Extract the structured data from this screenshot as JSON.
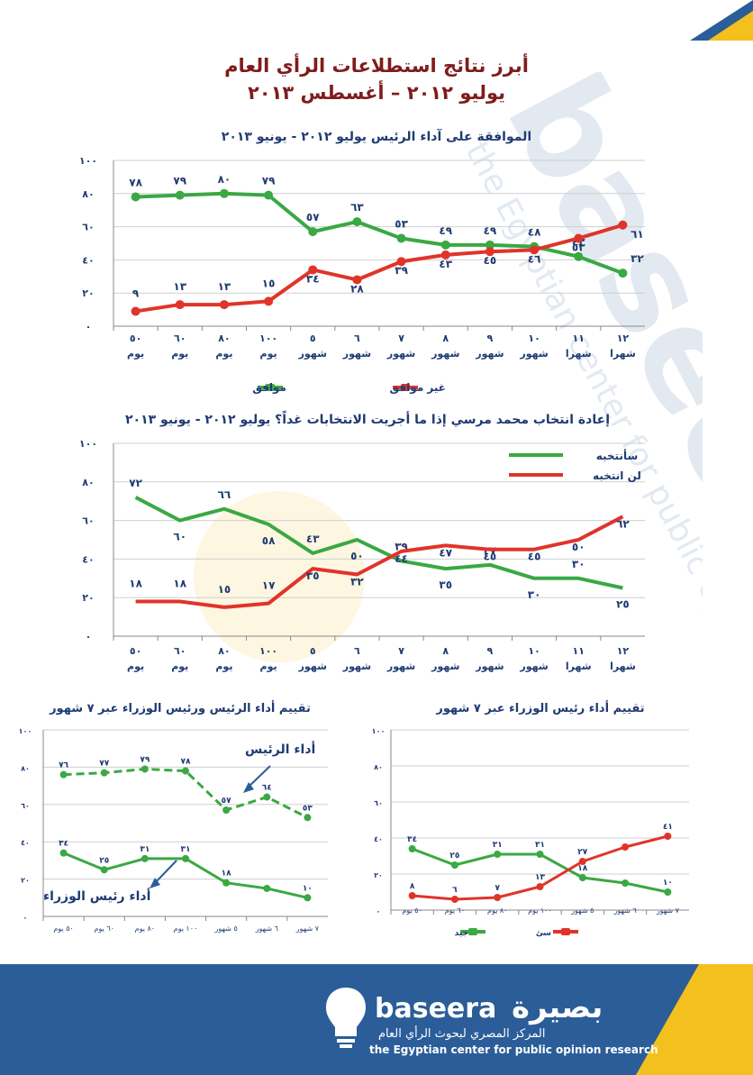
{
  "header": {
    "title_line1": "أبرز نتائج استطلاعات الرأي العام",
    "title_line2": "يوليو ٢٠١٢ – أغسطس ٢٠١٣"
  },
  "colors": {
    "green": "#3aa843",
    "red": "#e0342a",
    "blue": "#2b5d99",
    "yellow": "#f4c01e",
    "title": "#7f1d1d",
    "axis_text": "#1f3b73"
  },
  "watermark": {
    "text": "baseera",
    "subtitle": "the Egyptian center for public opinion research"
  },
  "annotations": {
    "president": "أداء الرئيس",
    "pm": "أداء رئيس الوزراء"
  },
  "footer": {
    "brand_latin": "baseera",
    "brand_arabic": "بصيرة",
    "tagline_ar": "المركز المصري لبحوث الرأي العام",
    "tagline_en": "the Egyptian center for public opinion research",
    "logo_icon": "lightbulb-head-icon"
  },
  "chart_data": [
    {
      "type": "line",
      "title": "الموافقة على آداء الرئيس يوليو ٢٠١٢ - يونيو ٢٠١٣",
      "categories": [
        [
          "٥٠",
          "يوم"
        ],
        [
          "٦٠",
          "يوم"
        ],
        [
          "٨٠",
          "يوم"
        ],
        [
          "١٠٠",
          "يوم"
        ],
        [
          "٥",
          "شهور"
        ],
        [
          "٦",
          "شهور"
        ],
        [
          "٧",
          "شهور"
        ],
        [
          "٨",
          "شهور"
        ],
        [
          "٩",
          "شهور"
        ],
        [
          "١٠",
          "شهور"
        ],
        [
          "١١",
          "شهرا"
        ],
        [
          "١٢",
          "شهرا"
        ]
      ],
      "ylim": [
        0,
        100
      ],
      "yticks": [
        "٠",
        "٢٠",
        "٤٠",
        "٦٠",
        "٨٠",
        "١٠٠"
      ],
      "legend_position": "bottom",
      "series": [
        {
          "name": "موافق",
          "color": "#3aa843",
          "values": [
            78,
            79,
            80,
            79,
            57,
            63,
            53,
            49,
            49,
            48,
            42,
            32
          ],
          "labels": [
            "٧٨",
            "٧٩",
            "٨٠",
            "٧٩",
            "٥٧",
            "٦٣",
            "٥٣",
            "٤٩",
            "٤٩",
            "٤٨",
            "٤٢",
            "٣٢"
          ]
        },
        {
          "name": "غير موافق",
          "color": "#e0342a",
          "values": [
            9,
            13,
            13,
            15,
            34,
            28,
            39,
            43,
            45,
            46,
            53,
            61
          ],
          "labels": [
            "٩",
            "١٣",
            "١٣",
            "١٥",
            "٣٤",
            "٢٨",
            "٣٩",
            "٤٣",
            "٤٥",
            "٤٦",
            "٥٣",
            "٦١"
          ]
        }
      ]
    },
    {
      "type": "line",
      "title": "إعادة انتخاب محمد مرسي إذا ما أجريت الانتخابات غداً؟ يوليو ٢٠١٢ - يونيو ٢٠١٣",
      "categories": [
        [
          "٥٠",
          "يوم"
        ],
        [
          "٦٠",
          "يوم"
        ],
        [
          "٨٠",
          "يوم"
        ],
        [
          "١٠٠",
          "يوم"
        ],
        [
          "٥",
          "شهور"
        ],
        [
          "٦",
          "شهور"
        ],
        [
          "٧",
          "شهور"
        ],
        [
          "٨",
          "شهور"
        ],
        [
          "٩",
          "شهور"
        ],
        [
          "١٠",
          "شهور"
        ],
        [
          "١١",
          "شهرا"
        ],
        [
          "١٢",
          "شهرا"
        ]
      ],
      "ylim": [
        0,
        100
      ],
      "yticks": [
        "٠",
        "٢٠",
        "٤٠",
        "٦٠",
        "٨٠",
        "١٠٠"
      ],
      "legend_position": "top-right",
      "series": [
        {
          "name": "سأنتخبه",
          "color": "#3aa843",
          "values": [
            72,
            60,
            66,
            58,
            43,
            50,
            39,
            35,
            37,
            30,
            30,
            25
          ],
          "labels": [
            "٧٢",
            "٦٠",
            "٦٦",
            "٥٨",
            "٤٣",
            "٥٠",
            "٣٩",
            "٣٥",
            "٣٧",
            "٣٠",
            "٣٠",
            "٢٥"
          ]
        },
        {
          "name": "لن انتخبه",
          "color": "#e0342a",
          "values": [
            18,
            18,
            15,
            17,
            35,
            32,
            44,
            47,
            45,
            45,
            50,
            62
          ],
          "labels": [
            "١٨",
            "١٨",
            "١٥",
            "١٧",
            "٣٥",
            "٣٢",
            "٤٤",
            "٤٧",
            "٤٥",
            "٤٥",
            "٥٠",
            "٦٢"
          ]
        }
      ]
    },
    {
      "type": "line",
      "title": "تقييم أداء الرئيس ورئيس الوزراء عبر ٧ شهور",
      "categories": [
        "٥٠ يوم",
        "٦٠ يوم",
        "٨٠ يوم",
        "١٠٠ يوم",
        "٥ شهور",
        "٦ شهور",
        "٧ شهور"
      ],
      "ylim": [
        0,
        100
      ],
      "yticks": [
        "٠",
        "٢٠",
        "٤٠",
        "٦٠",
        "٨٠",
        "١٠٠"
      ],
      "series": [
        {
          "color": "#3aa843",
          "dashed": true,
          "values": [
            76,
            77,
            79,
            78,
            57,
            64,
            53
          ],
          "labels": [
            "٧٦",
            "٧٧",
            "٧٩",
            "٧٨",
            "٥٧",
            "٦٤",
            "٥٣"
          ]
        },
        {
          "color": "#3aa843",
          "dashed": false,
          "values": [
            34,
            25,
            31,
            31,
            18,
            15,
            10
          ],
          "labels": [
            "٣٤",
            "٢٥",
            "٣١",
            "٣١",
            "١٨",
            "",
            "١٠"
          ]
        }
      ]
    },
    {
      "type": "line",
      "title": "تقييم أداء رئيس الوزراء عبر ٧ شهور",
      "categories": [
        "٥٠ يوم",
        "٦٠ يوم",
        "٨٠ يوم",
        "١٠٠ يوم",
        "٥ شهور",
        "٦ شهور",
        "٧ شهور"
      ],
      "ylim": [
        0,
        100
      ],
      "yticks": [
        "٠",
        "٢٠",
        "٤٠",
        "٦٠",
        "٨٠",
        "١٠٠"
      ],
      "legend_position": "bottom",
      "series": [
        {
          "name": "جيد",
          "color": "#3aa843",
          "values": [
            34,
            25,
            31,
            31,
            18,
            15,
            10
          ],
          "labels": [
            "٣٤",
            "٢٥",
            "٣١",
            "٣١",
            "١٨",
            "",
            "١٠"
          ]
        },
        {
          "name": "سئ",
          "color": "#e0342a",
          "values": [
            8,
            6,
            7,
            13,
            27,
            35,
            41
          ],
          "labels": [
            "٨",
            "٦",
            "٧",
            "١٣",
            "٢٧",
            "",
            "٤١"
          ]
        }
      ]
    }
  ]
}
